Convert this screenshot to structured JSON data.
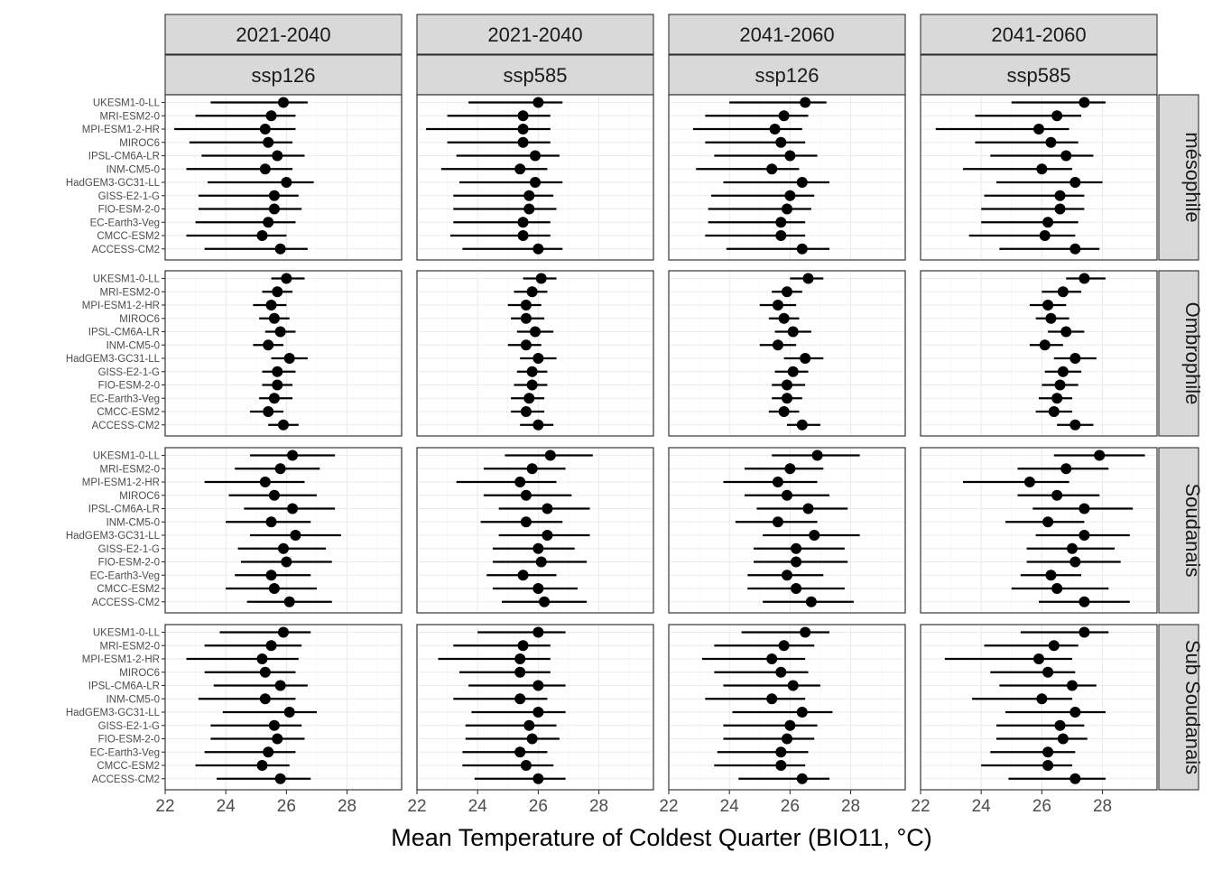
{
  "chart_data": {
    "type": "pointrange",
    "xlabel": "Mean Temperature of Coldest Quarter (BIO11, °C)",
    "ylabel": "",
    "xlim": [
      22,
      29.8
    ],
    "xticks": [
      22,
      24,
      26,
      28
    ],
    "models": [
      "UKESM1-0-LL",
      "MRI-ESM2-0",
      "MPI-ESM1-2-HR",
      "MIROC6",
      "IPSL-CM6A-LR",
      "INM-CM5-0",
      "HadGEM3-GC31-LL",
      "GISS-E2-1-G",
      "FIO-ESM-2-0",
      "EC-Earth3-Veg",
      "CMCC-ESM2",
      "ACCESS-CM2"
    ],
    "columns": [
      {
        "period": "2021-2040",
        "scenario": "ssp126"
      },
      {
        "period": "2021-2040",
        "scenario": "ssp585"
      },
      {
        "period": "2041-2060",
        "scenario": "ssp126"
      },
      {
        "period": "2041-2060",
        "scenario": "ssp585"
      }
    ],
    "rows": [
      "mésophile",
      "Ombrophile",
      "Soudanais",
      "Sub Soudanais"
    ],
    "panels": [
      [
        {
          "mean": [
            25.9,
            25.5,
            25.3,
            25.4,
            25.7,
            25.3,
            26.0,
            25.6,
            25.6,
            25.4,
            25.2,
            25.8
          ],
          "low": [
            23.5,
            23.0,
            22.3,
            22.8,
            23.2,
            22.7,
            23.4,
            23.1,
            23.1,
            23.0,
            22.7,
            23.3
          ],
          "high": [
            26.7,
            26.3,
            26.3,
            26.2,
            26.6,
            26.2,
            26.9,
            26.4,
            26.5,
            26.3,
            26.0,
            26.7
          ]
        },
        {
          "mean": [
            26.0,
            25.5,
            25.5,
            25.5,
            25.9,
            25.4,
            25.9,
            25.7,
            25.7,
            25.5,
            25.5,
            26.0
          ],
          "low": [
            23.7,
            23.0,
            22.3,
            23.0,
            23.3,
            22.8,
            23.4,
            23.2,
            23.2,
            23.2,
            23.1,
            23.5
          ],
          "high": [
            26.8,
            26.4,
            26.4,
            26.4,
            26.7,
            26.3,
            26.8,
            26.5,
            26.6,
            26.4,
            26.4,
            26.8
          ]
        },
        {
          "mean": [
            26.5,
            25.8,
            25.5,
            25.7,
            26.0,
            25.4,
            26.4,
            26.0,
            25.9,
            25.7,
            25.7,
            26.4
          ],
          "low": [
            24.0,
            23.2,
            22.8,
            23.2,
            23.5,
            22.9,
            23.8,
            23.4,
            23.3,
            23.3,
            23.2,
            23.9
          ],
          "high": [
            27.2,
            26.6,
            26.4,
            26.5,
            26.9,
            26.3,
            27.3,
            26.8,
            26.7,
            26.5,
            26.5,
            27.3
          ]
        },
        {
          "mean": [
            27.4,
            26.5,
            25.9,
            26.3,
            26.8,
            26.0,
            27.1,
            26.6,
            26.6,
            26.2,
            26.1,
            27.1
          ],
          "low": [
            25.0,
            23.8,
            22.5,
            23.8,
            24.3,
            23.4,
            24.5,
            24.1,
            24.0,
            24.0,
            23.6,
            24.6
          ],
          "high": [
            28.1,
            27.3,
            26.9,
            27.2,
            27.7,
            27.0,
            28.0,
            27.4,
            27.4,
            27.2,
            27.1,
            27.9
          ]
        }
      ],
      [
        {
          "mean": [
            26.0,
            25.7,
            25.5,
            25.6,
            25.8,
            25.4,
            26.1,
            25.7,
            25.7,
            25.6,
            25.4,
            25.9
          ],
          "low": [
            25.5,
            25.2,
            24.9,
            25.1,
            25.3,
            24.9,
            25.5,
            25.2,
            25.2,
            25.1,
            24.8,
            25.4
          ],
          "high": [
            26.6,
            26.2,
            26.0,
            26.1,
            26.3,
            25.9,
            26.7,
            26.3,
            26.2,
            26.2,
            25.9,
            26.4
          ]
        },
        {
          "mean": [
            26.1,
            25.8,
            25.6,
            25.6,
            25.9,
            25.6,
            26.0,
            25.8,
            25.8,
            25.7,
            25.6,
            26.0
          ],
          "low": [
            25.5,
            25.2,
            25.0,
            25.1,
            25.3,
            25.0,
            25.4,
            25.3,
            25.2,
            25.1,
            25.1,
            25.4
          ],
          "high": [
            26.6,
            26.3,
            26.1,
            26.2,
            26.5,
            26.1,
            26.6,
            26.3,
            26.3,
            26.2,
            26.2,
            26.5
          ]
        },
        {
          "mean": [
            26.6,
            25.9,
            25.6,
            25.8,
            26.1,
            25.6,
            26.5,
            26.1,
            25.9,
            25.9,
            25.8,
            26.4
          ],
          "low": [
            26.0,
            25.4,
            25.0,
            25.3,
            25.5,
            25.0,
            25.8,
            25.5,
            25.4,
            25.4,
            25.3,
            25.9
          ],
          "high": [
            27.1,
            26.4,
            26.2,
            26.3,
            26.7,
            26.2,
            27.1,
            26.6,
            26.5,
            26.4,
            26.3,
            27.0
          ]
        },
        {
          "mean": [
            27.4,
            26.7,
            26.2,
            26.3,
            26.8,
            26.1,
            27.1,
            26.7,
            26.6,
            26.5,
            26.4,
            27.1
          ],
          "low": [
            26.8,
            26.0,
            25.6,
            25.8,
            26.2,
            25.6,
            26.4,
            26.1,
            26.0,
            25.9,
            25.8,
            26.5
          ],
          "high": [
            28.1,
            27.3,
            26.8,
            26.9,
            27.4,
            26.7,
            27.8,
            27.3,
            27.2,
            27.0,
            27.0,
            27.7
          ]
        }
      ],
      [
        {
          "mean": [
            26.2,
            25.8,
            25.3,
            25.6,
            26.2,
            25.5,
            26.3,
            25.9,
            26.0,
            25.5,
            25.6,
            26.1
          ],
          "low": [
            24.8,
            24.3,
            23.3,
            24.1,
            24.6,
            24.0,
            24.8,
            24.4,
            24.5,
            24.3,
            24.0,
            24.7
          ],
          "high": [
            27.6,
            27.1,
            26.6,
            27.0,
            27.6,
            26.8,
            27.8,
            27.3,
            27.5,
            26.8,
            27.0,
            27.5
          ]
        },
        {
          "mean": [
            26.4,
            25.8,
            25.4,
            25.6,
            26.3,
            25.6,
            26.3,
            26.0,
            26.1,
            25.5,
            26.0,
            26.2
          ],
          "low": [
            24.9,
            24.2,
            23.3,
            24.2,
            24.7,
            24.1,
            24.7,
            24.5,
            24.5,
            24.3,
            24.5,
            24.8
          ],
          "high": [
            27.8,
            26.9,
            26.6,
            27.1,
            27.7,
            26.8,
            27.7,
            27.2,
            27.6,
            26.6,
            27.3,
            27.6
          ]
        },
        {
          "mean": [
            26.9,
            26.0,
            25.6,
            25.9,
            26.6,
            25.6,
            26.8,
            26.2,
            26.2,
            25.9,
            26.2,
            26.7
          ],
          "low": [
            25.4,
            24.5,
            23.8,
            24.5,
            24.9,
            24.2,
            25.1,
            24.8,
            24.8,
            24.6,
            24.6,
            25.1
          ],
          "high": [
            28.3,
            27.1,
            26.9,
            27.3,
            27.9,
            26.9,
            28.3,
            27.8,
            27.9,
            27.1,
            27.8,
            28.1
          ]
        },
        {
          "mean": [
            27.9,
            26.8,
            25.6,
            26.5,
            27.4,
            26.2,
            27.4,
            27.0,
            27.1,
            26.3,
            26.5,
            27.4
          ],
          "low": [
            26.4,
            25.2,
            23.4,
            25.2,
            25.7,
            24.8,
            25.8,
            25.5,
            25.5,
            25.3,
            25.0,
            25.9
          ],
          "high": [
            29.4,
            28.2,
            26.9,
            27.9,
            29.0,
            27.4,
            28.9,
            28.4,
            28.6,
            27.3,
            28.2,
            28.9
          ]
        }
      ],
      [
        {
          "mean": [
            25.9,
            25.5,
            25.2,
            25.3,
            25.8,
            25.3,
            26.1,
            25.6,
            25.7,
            25.4,
            25.2,
            25.8
          ],
          "low": [
            23.8,
            23.3,
            22.7,
            23.3,
            23.6,
            23.1,
            23.9,
            23.5,
            23.5,
            23.3,
            23.0,
            23.7
          ],
          "high": [
            26.8,
            26.5,
            26.4,
            26.3,
            26.7,
            26.3,
            27.0,
            26.5,
            26.6,
            26.3,
            26.1,
            26.8
          ]
        },
        {
          "mean": [
            26.0,
            25.5,
            25.4,
            25.4,
            26.0,
            25.4,
            26.0,
            25.7,
            25.8,
            25.4,
            25.6,
            26.0
          ],
          "low": [
            24.0,
            23.2,
            22.7,
            23.4,
            23.7,
            23.2,
            23.8,
            23.6,
            23.6,
            23.5,
            23.5,
            23.9
          ],
          "high": [
            26.9,
            26.4,
            26.4,
            26.4,
            26.9,
            26.3,
            26.9,
            26.6,
            26.7,
            26.3,
            26.5,
            26.9
          ]
        },
        {
          "mean": [
            26.5,
            25.8,
            25.4,
            25.7,
            26.1,
            25.4,
            26.4,
            26.0,
            25.9,
            25.7,
            25.7,
            26.4
          ],
          "low": [
            24.4,
            23.5,
            23.1,
            23.5,
            23.8,
            23.2,
            24.1,
            23.8,
            23.8,
            23.6,
            23.5,
            24.3
          ],
          "high": [
            27.3,
            26.8,
            26.5,
            26.6,
            27.0,
            26.5,
            27.4,
            26.9,
            26.8,
            26.6,
            26.5,
            27.3
          ]
        },
        {
          "mean": [
            27.4,
            26.4,
            25.9,
            26.2,
            27.0,
            26.0,
            27.1,
            26.6,
            26.7,
            26.2,
            26.2,
            27.1
          ],
          "low": [
            25.3,
            24.1,
            22.8,
            24.3,
            24.6,
            23.7,
            24.8,
            24.5,
            24.5,
            24.3,
            24.0,
            24.9
          ],
          "high": [
            28.2,
            27.2,
            27.0,
            27.1,
            27.8,
            27.0,
            28.1,
            27.4,
            27.5,
            27.1,
            27.0,
            28.1
          ]
        }
      ]
    ]
  }
}
